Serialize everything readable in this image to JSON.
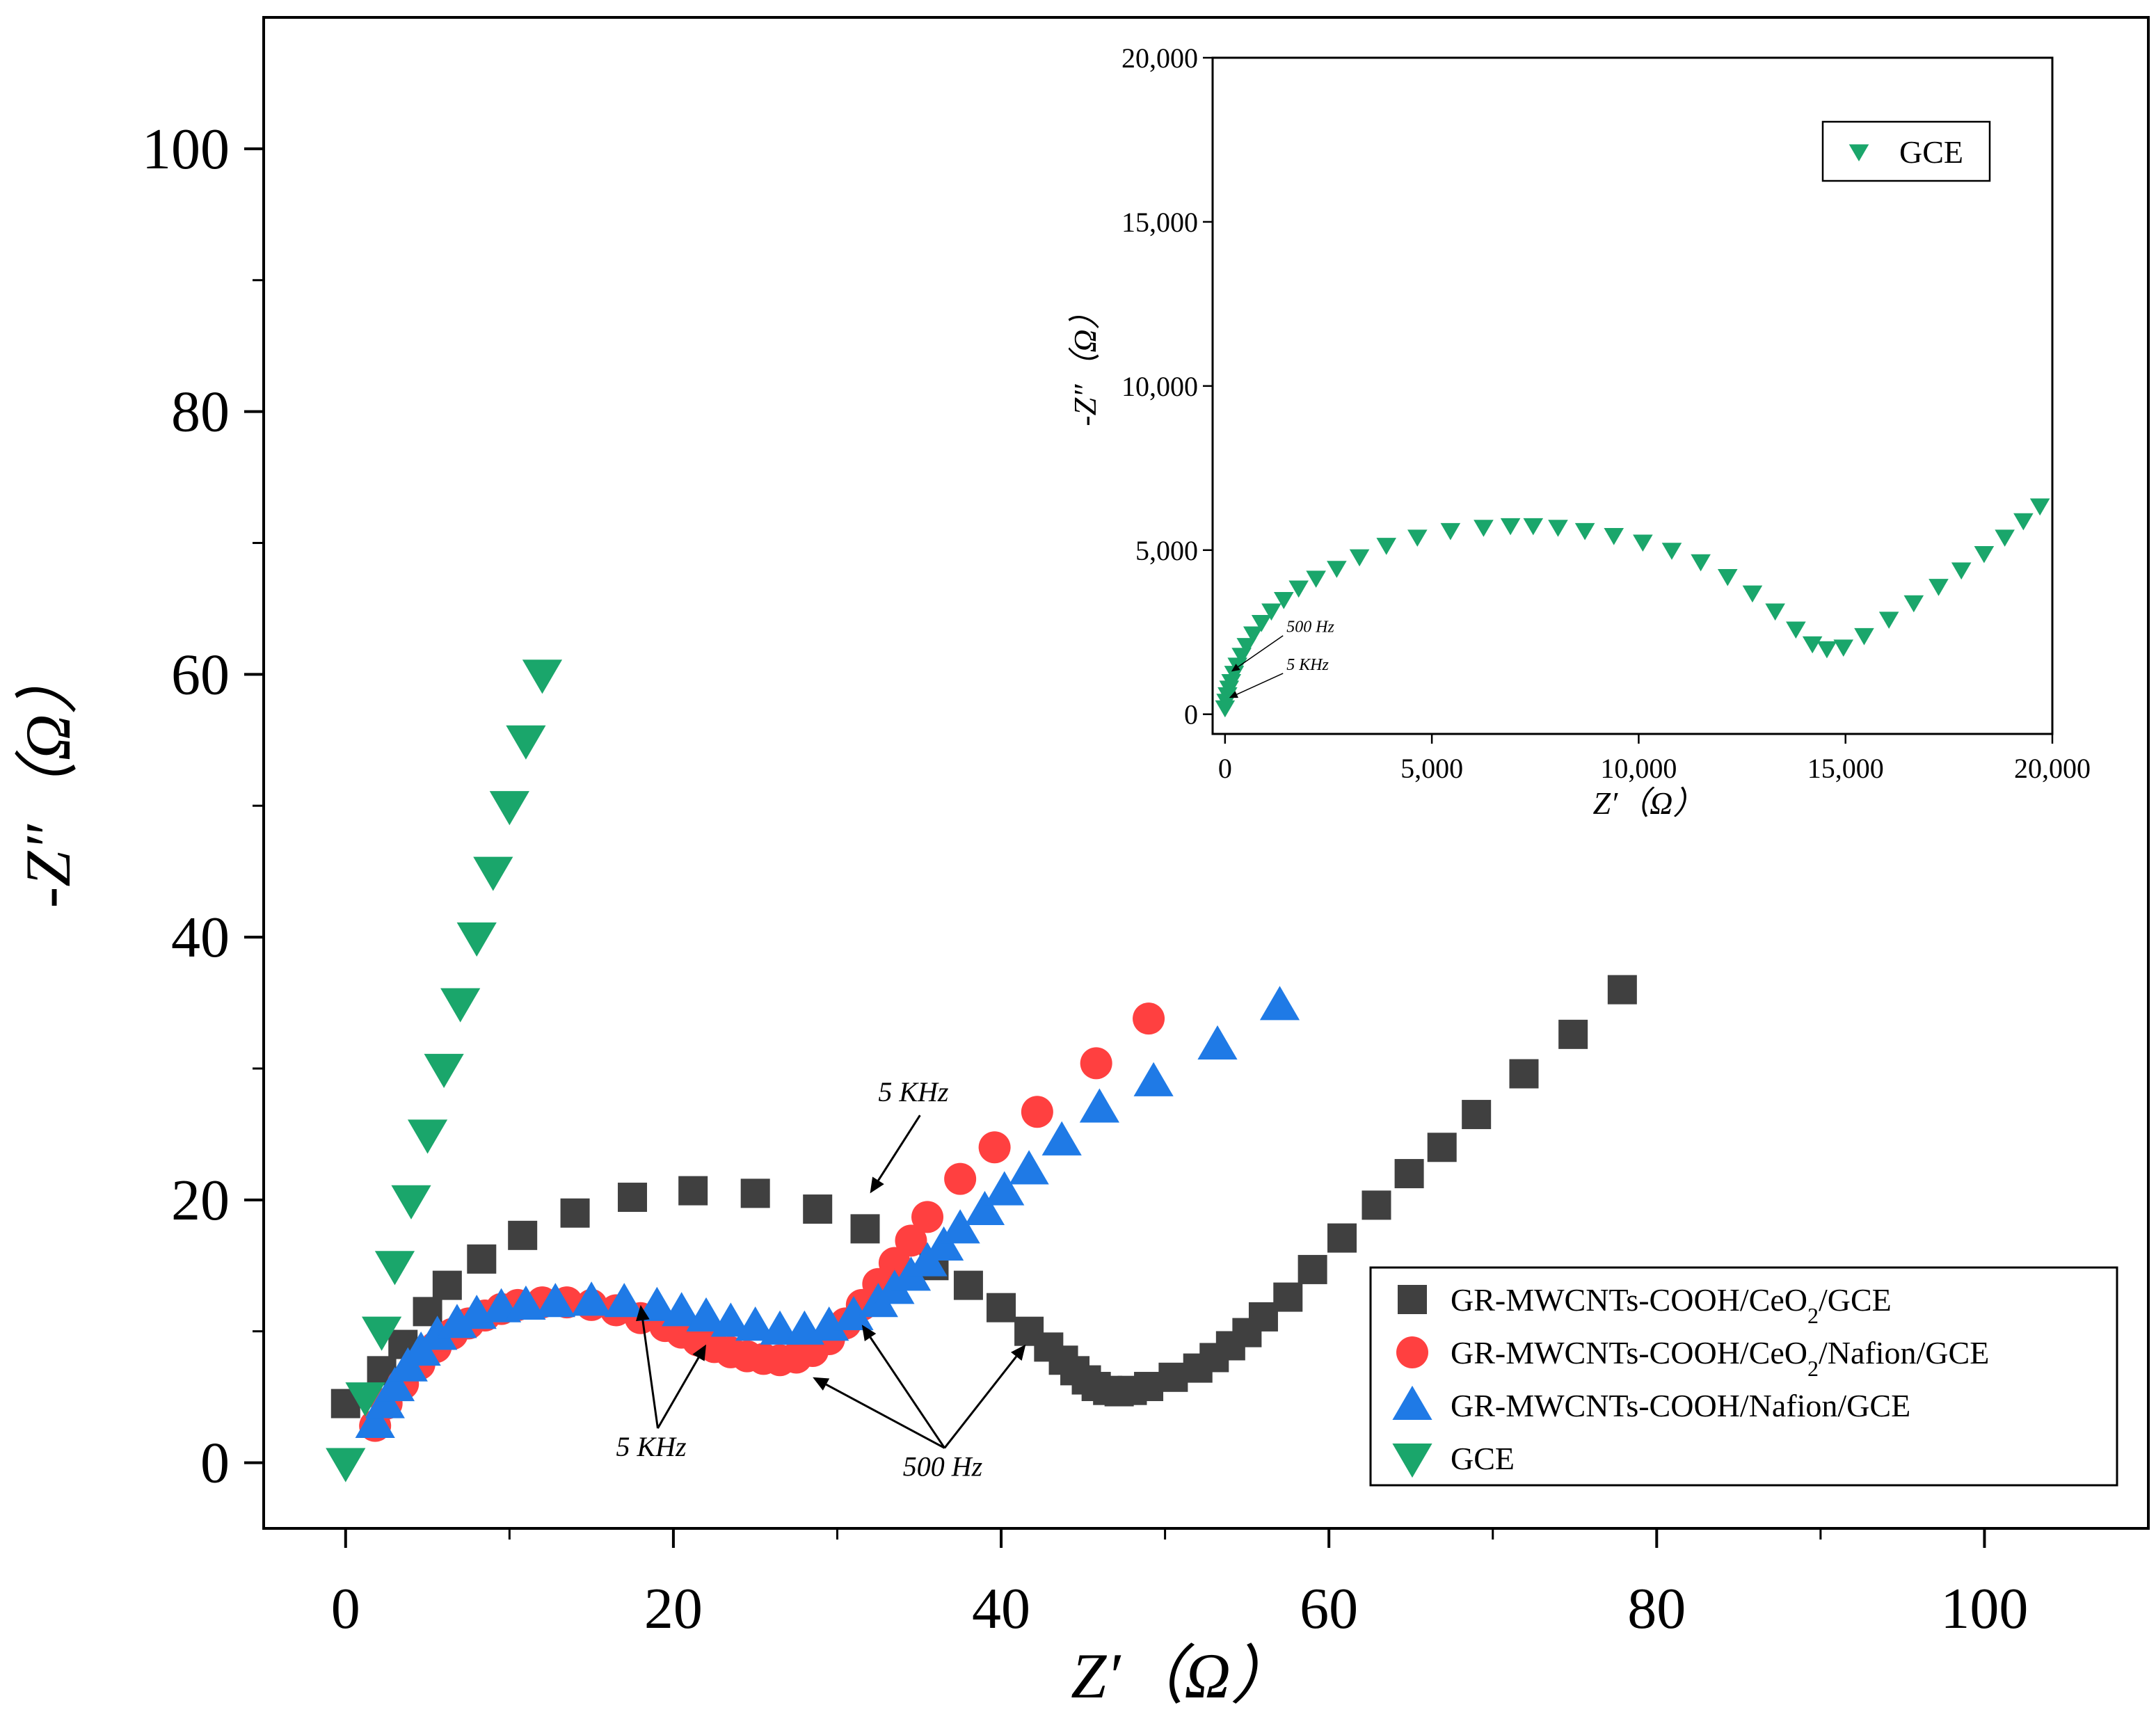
{
  "chart_data": [
    {
      "type": "scatter",
      "xlabel": "Z′（Ω）",
      "ylabel": "-Z″（Ω）",
      "xlim": [
        -5,
        110
      ],
      "ylim": [
        -5,
        110
      ],
      "xticks": [
        0,
        20,
        40,
        60,
        80,
        100
      ],
      "xtick_labels": [
        "0",
        "20",
        "40",
        "60",
        "80",
        "100"
      ],
      "yticks": [
        0,
        20,
        40,
        60,
        80,
        100
      ],
      "ytick_labels": [
        "0",
        "20",
        "40",
        "60",
        "80",
        "100"
      ],
      "legend_position": "bottom-right",
      "series": [
        {
          "name": "GR-MWCNTs-COOH/CeO2/GCE",
          "marker": "square",
          "color": "#404040",
          "x": [
            0,
            2.2,
            3.5,
            5,
            6.2,
            8.3,
            10.8,
            14,
            17.5,
            21.2,
            25,
            28.8,
            31.7,
            35.9,
            38,
            40,
            41.7,
            42.9,
            43.8,
            44.5,
            45.2,
            45.8,
            46.5,
            47.2,
            48,
            49,
            50.5,
            52,
            53,
            54,
            55,
            56,
            57.5,
            59,
            60.8,
            62.9,
            64.9,
            66.9,
            69,
            71.9,
            74.9,
            77.9
          ],
          "y": [
            4.5,
            7,
            9,
            11.5,
            13.5,
            15.5,
            17.3,
            19,
            20.2,
            20.7,
            20.5,
            19.3,
            17.8,
            15,
            13.5,
            11.8,
            10,
            8.8,
            7.8,
            7,
            6.3,
            5.8,
            5.5,
            5.4,
            5.5,
            5.8,
            6.5,
            7.2,
            8,
            8.9,
            9.9,
            11.1,
            12.6,
            14.7,
            17.1,
            19.6,
            22,
            24,
            26.5,
            29.6,
            32.6,
            36
          ]
        },
        {
          "name": "GR-MWCNTs-COOH/CeO2/Nafion/GCE",
          "marker": "circle",
          "color": "#ff4040",
          "x": [
            1.8,
            2.5,
            3.5,
            4.5,
            5.5,
            6.5,
            7.5,
            8.5,
            9.5,
            10.5,
            12,
            13.5,
            15,
            16.5,
            18,
            19.5,
            20.5,
            21.5,
            22.5,
            23.5,
            24.5,
            25.5,
            26.5,
            27.5,
            28.5,
            29.5,
            30.5,
            31.5,
            32.5,
            33.5,
            34.5,
            35.5,
            37.5,
            39.6,
            42.2,
            45.8,
            49
          ],
          "y": [
            2.8,
            4.5,
            6,
            7.5,
            8.8,
            9.8,
            10.6,
            11.2,
            11.7,
            12,
            12.2,
            12.2,
            12,
            11.6,
            11,
            10.4,
            9.9,
            9.3,
            8.8,
            8.4,
            8.1,
            7.9,
            7.8,
            8,
            8.5,
            9.4,
            10.6,
            12,
            13.6,
            15.2,
            16.9,
            18.7,
            21.6,
            24,
            26.7,
            30.4,
            33.8
          ]
        },
        {
          "name": "GR-MWCNTs-COOH/Nafion/GCE",
          "marker": "triangle-up",
          "color": "#1f7ae6",
          "x": [
            1.8,
            2.4,
            3,
            3.8,
            4.6,
            5.6,
            6.8,
            8,
            9.5,
            11,
            12.8,
            15,
            17,
            19,
            20.5,
            22,
            23.5,
            25,
            26.5,
            28,
            29.5,
            31,
            32.5,
            33.5,
            34.5,
            35.5,
            36.5,
            37.5,
            39,
            40.2,
            41.7,
            43.7,
            46,
            49.3,
            53.2,
            57
          ],
          "y": [
            3,
            4.5,
            5.8,
            7.3,
            8.5,
            9.7,
            10.6,
            11.3,
            11.8,
            12,
            12.2,
            12.3,
            12.2,
            11.9,
            11.5,
            11.1,
            10.7,
            10.4,
            10.1,
            10.1,
            10.4,
            11.2,
            12.2,
            13.2,
            14.2,
            15.3,
            16.5,
            17.8,
            19.2,
            20.7,
            22.3,
            24.5,
            27,
            29,
            31.8,
            34.8
          ]
        },
        {
          "name": "GCE",
          "marker": "triangle-down",
          "color": "#1aa66b",
          "x": [
            0,
            1.2,
            2.2,
            3,
            4,
            5,
            6,
            7,
            8,
            9,
            10,
            11,
            12
          ],
          "y": [
            0,
            5,
            10,
            15,
            20,
            25,
            30,
            35,
            40,
            45,
            50,
            55,
            60
          ]
        }
      ],
      "annotations": [
        {
          "text": "5 KHz",
          "x": 32.5,
          "y": 27.5,
          "arrow_to_x": 32,
          "arrow_to_y": 20.5
        },
        {
          "text": "5 KHz",
          "x": 16.5,
          "y": 0.5,
          "arrow_to_x": 18,
          "arrow_to_y": 12,
          "arrow2_to_x": 22,
          "arrow2_to_y": 9
        },
        {
          "text": "500  Hz",
          "x": 34,
          "y": -1,
          "arrow_to_x": 28.5,
          "arrow_to_y": 6.5,
          "arrow2_to_x": 31.5,
          "arrow2_to_y": 10.5,
          "arrow3_to_x": 41.5,
          "arrow3_to_y": 9
        }
      ]
    },
    {
      "type": "scatter",
      "xlabel": "Z′（Ω）",
      "ylabel": "-Z″（Ω）",
      "xlim": [
        -300,
        20000
      ],
      "ylim": [
        -600,
        20000
      ],
      "xticks": [
        0,
        5000,
        10000,
        15000,
        20000
      ],
      "xtick_labels": [
        "0",
        "5,000",
        "10,000",
        "15,000",
        "20,000"
      ],
      "yticks": [
        0,
        5000,
        10000,
        15000,
        20000
      ],
      "ytick_labels": [
        "0",
        "5,000",
        "10,000",
        "15,000",
        "20,000"
      ],
      "legend_position": "top-right",
      "series": [
        {
          "name": "GCE",
          "marker": "triangle-down",
          "color": "#1aa66b",
          "x": [
            0,
            30,
            60,
            100,
            150,
            220,
            300,
            400,
            520,
            680,
            880,
            1120,
            1420,
            1780,
            2200,
            2700,
            3250,
            3900,
            4650,
            5450,
            6250,
            6900,
            7450,
            8050,
            8700,
            9400,
            10100,
            10800,
            11500,
            12150,
            12750,
            13300,
            13800,
            14200,
            14550,
            14950,
            15450,
            16050,
            16650,
            17250,
            17800,
            18350,
            18850,
            19300,
            19700
          ],
          "y": [
            200,
            400,
            600,
            800,
            1000,
            1250,
            1500,
            1800,
            2100,
            2450,
            2800,
            3150,
            3500,
            3850,
            4150,
            4450,
            4800,
            5150,
            5400,
            5600,
            5700,
            5750,
            5750,
            5700,
            5600,
            5450,
            5250,
            5000,
            4650,
            4200,
            3700,
            3150,
            2600,
            2150,
            2000,
            2050,
            2400,
            2900,
            3400,
            3900,
            4400,
            4900,
            5400,
            5900,
            6350
          ]
        }
      ],
      "annotations": [
        {
          "text": "500 Hz",
          "x": 1150,
          "y": 2500,
          "arrow_to_x": 150,
          "arrow_to_y": 1300
        },
        {
          "text": "5 KHz",
          "x": 1150,
          "y": 1350,
          "arrow_to_x": 100,
          "arrow_to_y": 500
        }
      ]
    }
  ],
  "colors": {
    "square": "#404040",
    "circle": "#ff4040",
    "triangle_up": "#1f7ae6",
    "triangle_down": "#1aa66b",
    "axis": "#000000"
  }
}
